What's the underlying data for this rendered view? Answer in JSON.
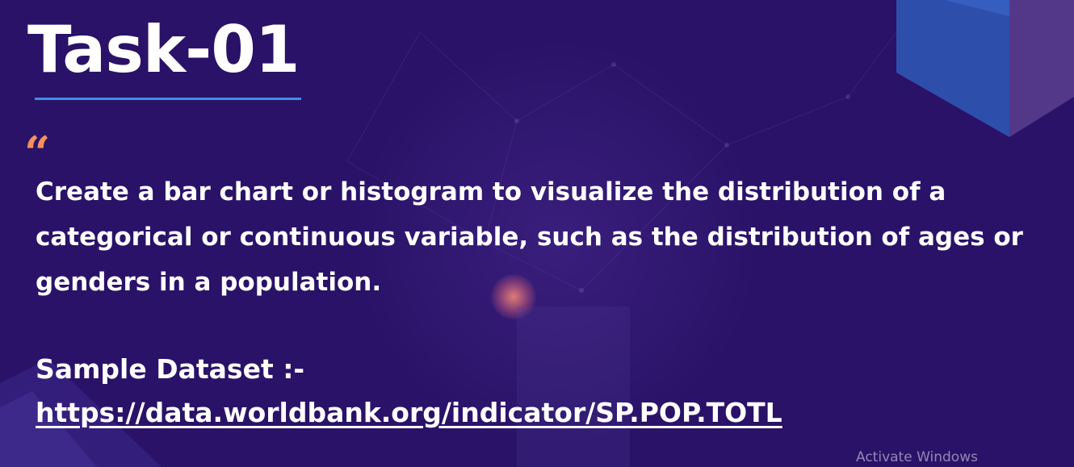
{
  "slide": {
    "title": "Task-01",
    "quote_icon": "“",
    "description": "Create a bar chart or histogram to visualize the distribution of a categorical or continuous variable, such as the distribution of ages or genders in a population.",
    "dataset_label": "Sample Dataset :-",
    "dataset_link": "https://data.worldbank.org/indicator/SP.POP.TOTL"
  },
  "os_overlay": {
    "watermark": "Activate Windows"
  },
  "colors": {
    "background": "#2a1268",
    "title_rule": "#3d8fe6",
    "quote_accent": "#f4915a",
    "text": "#ffffff"
  },
  "icons": {
    "quote": "opening-quote-icon",
    "decoration_top_right": "cube-decoration",
    "decoration_bottom_left": "corner-shape-decoration"
  }
}
